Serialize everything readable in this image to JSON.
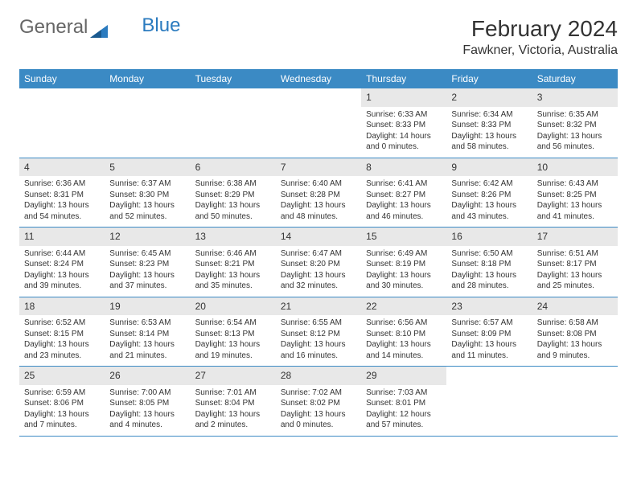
{
  "logo": {
    "text1": "General",
    "text2": "Blue"
  },
  "title": "February 2024",
  "location": "Fawkner, Victoria, Australia",
  "colors": {
    "header_bg": "#3b8ac4",
    "header_text": "#ffffff",
    "daynum_bg": "#e8e8e8",
    "border": "#3b8ac4",
    "logo_accent": "#2b7bbf"
  },
  "day_names": [
    "Sunday",
    "Monday",
    "Tuesday",
    "Wednesday",
    "Thursday",
    "Friday",
    "Saturday"
  ],
  "weeks": [
    [
      null,
      null,
      null,
      null,
      {
        "n": "1",
        "sr": "Sunrise: 6:33 AM",
        "ss": "Sunset: 8:33 PM",
        "dl1": "Daylight: 14 hours",
        "dl2": "and 0 minutes."
      },
      {
        "n": "2",
        "sr": "Sunrise: 6:34 AM",
        "ss": "Sunset: 8:33 PM",
        "dl1": "Daylight: 13 hours",
        "dl2": "and 58 minutes."
      },
      {
        "n": "3",
        "sr": "Sunrise: 6:35 AM",
        "ss": "Sunset: 8:32 PM",
        "dl1": "Daylight: 13 hours",
        "dl2": "and 56 minutes."
      }
    ],
    [
      {
        "n": "4",
        "sr": "Sunrise: 6:36 AM",
        "ss": "Sunset: 8:31 PM",
        "dl1": "Daylight: 13 hours",
        "dl2": "and 54 minutes."
      },
      {
        "n": "5",
        "sr": "Sunrise: 6:37 AM",
        "ss": "Sunset: 8:30 PM",
        "dl1": "Daylight: 13 hours",
        "dl2": "and 52 minutes."
      },
      {
        "n": "6",
        "sr": "Sunrise: 6:38 AM",
        "ss": "Sunset: 8:29 PM",
        "dl1": "Daylight: 13 hours",
        "dl2": "and 50 minutes."
      },
      {
        "n": "7",
        "sr": "Sunrise: 6:40 AM",
        "ss": "Sunset: 8:28 PM",
        "dl1": "Daylight: 13 hours",
        "dl2": "and 48 minutes."
      },
      {
        "n": "8",
        "sr": "Sunrise: 6:41 AM",
        "ss": "Sunset: 8:27 PM",
        "dl1": "Daylight: 13 hours",
        "dl2": "and 46 minutes."
      },
      {
        "n": "9",
        "sr": "Sunrise: 6:42 AM",
        "ss": "Sunset: 8:26 PM",
        "dl1": "Daylight: 13 hours",
        "dl2": "and 43 minutes."
      },
      {
        "n": "10",
        "sr": "Sunrise: 6:43 AM",
        "ss": "Sunset: 8:25 PM",
        "dl1": "Daylight: 13 hours",
        "dl2": "and 41 minutes."
      }
    ],
    [
      {
        "n": "11",
        "sr": "Sunrise: 6:44 AM",
        "ss": "Sunset: 8:24 PM",
        "dl1": "Daylight: 13 hours",
        "dl2": "and 39 minutes."
      },
      {
        "n": "12",
        "sr": "Sunrise: 6:45 AM",
        "ss": "Sunset: 8:23 PM",
        "dl1": "Daylight: 13 hours",
        "dl2": "and 37 minutes."
      },
      {
        "n": "13",
        "sr": "Sunrise: 6:46 AM",
        "ss": "Sunset: 8:21 PM",
        "dl1": "Daylight: 13 hours",
        "dl2": "and 35 minutes."
      },
      {
        "n": "14",
        "sr": "Sunrise: 6:47 AM",
        "ss": "Sunset: 8:20 PM",
        "dl1": "Daylight: 13 hours",
        "dl2": "and 32 minutes."
      },
      {
        "n": "15",
        "sr": "Sunrise: 6:49 AM",
        "ss": "Sunset: 8:19 PM",
        "dl1": "Daylight: 13 hours",
        "dl2": "and 30 minutes."
      },
      {
        "n": "16",
        "sr": "Sunrise: 6:50 AM",
        "ss": "Sunset: 8:18 PM",
        "dl1": "Daylight: 13 hours",
        "dl2": "and 28 minutes."
      },
      {
        "n": "17",
        "sr": "Sunrise: 6:51 AM",
        "ss": "Sunset: 8:17 PM",
        "dl1": "Daylight: 13 hours",
        "dl2": "and 25 minutes."
      }
    ],
    [
      {
        "n": "18",
        "sr": "Sunrise: 6:52 AM",
        "ss": "Sunset: 8:15 PM",
        "dl1": "Daylight: 13 hours",
        "dl2": "and 23 minutes."
      },
      {
        "n": "19",
        "sr": "Sunrise: 6:53 AM",
        "ss": "Sunset: 8:14 PM",
        "dl1": "Daylight: 13 hours",
        "dl2": "and 21 minutes."
      },
      {
        "n": "20",
        "sr": "Sunrise: 6:54 AM",
        "ss": "Sunset: 8:13 PM",
        "dl1": "Daylight: 13 hours",
        "dl2": "and 19 minutes."
      },
      {
        "n": "21",
        "sr": "Sunrise: 6:55 AM",
        "ss": "Sunset: 8:12 PM",
        "dl1": "Daylight: 13 hours",
        "dl2": "and 16 minutes."
      },
      {
        "n": "22",
        "sr": "Sunrise: 6:56 AM",
        "ss": "Sunset: 8:10 PM",
        "dl1": "Daylight: 13 hours",
        "dl2": "and 14 minutes."
      },
      {
        "n": "23",
        "sr": "Sunrise: 6:57 AM",
        "ss": "Sunset: 8:09 PM",
        "dl1": "Daylight: 13 hours",
        "dl2": "and 11 minutes."
      },
      {
        "n": "24",
        "sr": "Sunrise: 6:58 AM",
        "ss": "Sunset: 8:08 PM",
        "dl1": "Daylight: 13 hours",
        "dl2": "and 9 minutes."
      }
    ],
    [
      {
        "n": "25",
        "sr": "Sunrise: 6:59 AM",
        "ss": "Sunset: 8:06 PM",
        "dl1": "Daylight: 13 hours",
        "dl2": "and 7 minutes."
      },
      {
        "n": "26",
        "sr": "Sunrise: 7:00 AM",
        "ss": "Sunset: 8:05 PM",
        "dl1": "Daylight: 13 hours",
        "dl2": "and 4 minutes."
      },
      {
        "n": "27",
        "sr": "Sunrise: 7:01 AM",
        "ss": "Sunset: 8:04 PM",
        "dl1": "Daylight: 13 hours",
        "dl2": "and 2 minutes."
      },
      {
        "n": "28",
        "sr": "Sunrise: 7:02 AM",
        "ss": "Sunset: 8:02 PM",
        "dl1": "Daylight: 13 hours",
        "dl2": "and 0 minutes."
      },
      {
        "n": "29",
        "sr": "Sunrise: 7:03 AM",
        "ss": "Sunset: 8:01 PM",
        "dl1": "Daylight: 12 hours",
        "dl2": "and 57 minutes."
      },
      null,
      null
    ]
  ]
}
